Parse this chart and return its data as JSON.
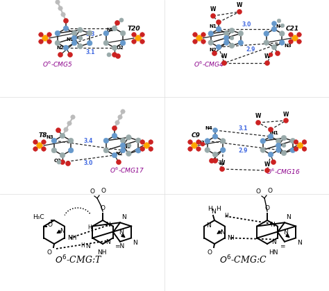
{
  "bg_color": "#ffffff",
  "distance_color": "#4169E1",
  "purple_color": "#8B008B",
  "panels": {
    "TL": {
      "dist1": "3.3",
      "dist2": "3.1",
      "label1": "T20",
      "label2": "O⁶-CMG5"
    },
    "TR": {
      "dist1": "3.0",
      "dist2": "2.9",
      "label1": "C21",
      "label2": "O⁶-CMG4"
    },
    "ML": {
      "dist1": "3.4",
      "dist2": "3.0",
      "label1": "T8",
      "label2": "O⁶-CMG17"
    },
    "MR": {
      "dist1": "3.1",
      "dist2": "2.9",
      "label1": "C9",
      "label2": "O⁶-CMG16"
    }
  },
  "bottom_left_label": "$O^6$-CMG:T",
  "bottom_right_label": "$O^6$-CMG:C",
  "N_color": "#6699CC",
  "O_color": "#CC2222",
  "P_color": "#FFA500",
  "C_color": "#99AAAA",
  "Cg_color": "#BBBBBB",
  "bond_color": "#222222"
}
